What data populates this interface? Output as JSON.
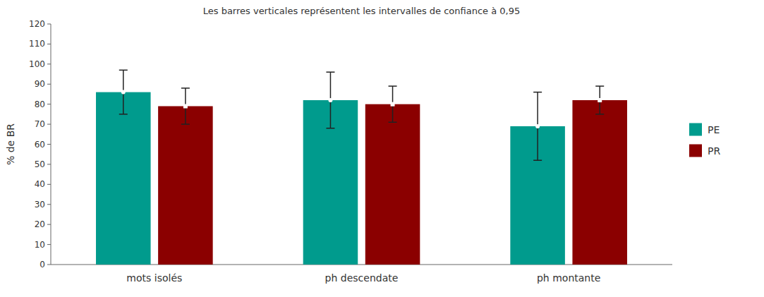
{
  "chart_data": {
    "type": "bar",
    "title": "Les barres verticales représentent les intervalles de confiance à 0,95",
    "y_label": "% de BR",
    "categories": [
      "mots isolés",
      "ph descendate",
      "ph montante"
    ],
    "series": [
      {
        "name": "PE",
        "color": "#009B8D",
        "marker": "circle",
        "values": [
          86,
          82,
          69
        ],
        "error_low": [
          11,
          14,
          17
        ],
        "error_high": [
          11,
          14,
          17
        ]
      },
      {
        "name": "PR",
        "color": "#8B0000",
        "marker": "square",
        "values": [
          79,
          80,
          82
        ],
        "error_low": [
          9,
          9,
          7
        ],
        "error_high": [
          9,
          9,
          7
        ]
      }
    ],
    "ylim": [
      0,
      120
    ],
    "yticks": [
      0,
      10,
      20,
      30,
      40,
      50,
      60,
      70,
      80,
      90,
      100,
      110,
      120
    ],
    "grid": false,
    "legend": "right"
  }
}
